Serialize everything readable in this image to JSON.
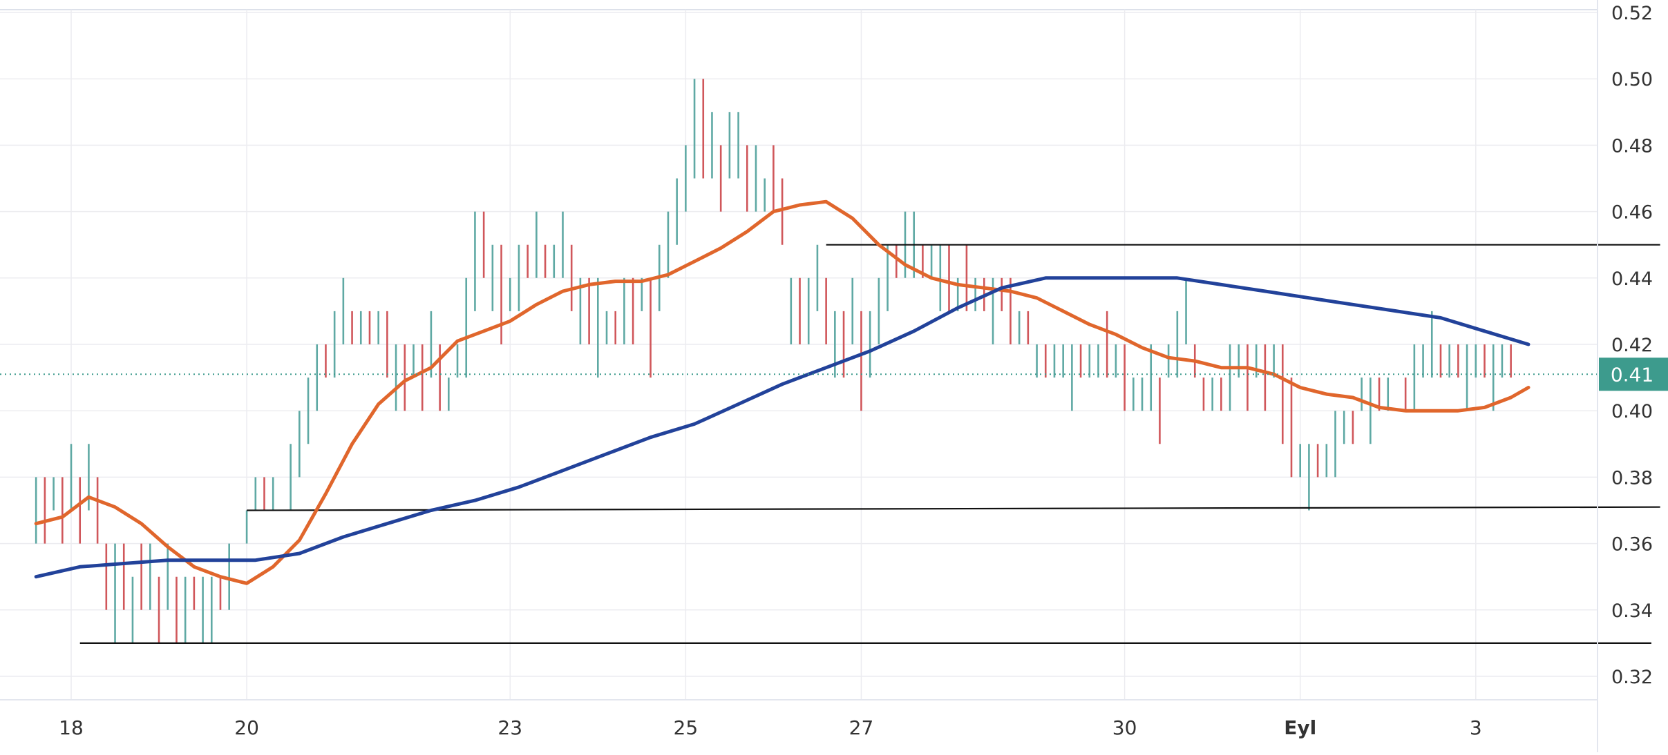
{
  "chart_data": {
    "type": "line",
    "title": "",
    "xlabel": "",
    "ylabel": "",
    "x_ticks": [
      "18",
      "20",
      "23",
      "25",
      "27",
      "30",
      "Eyl",
      "3"
    ],
    "y_ticks": [
      "0.32",
      "0.34",
      "0.36",
      "0.38",
      "0.40",
      "0.42",
      "0.44",
      "0.46",
      "0.48",
      "0.50",
      "0.52"
    ],
    "ylim": [
      0.31,
      0.52
    ],
    "xlim": [
      17.6,
      36.2
    ],
    "grid": true,
    "last_price_label": "0.41",
    "last_price": 0.411,
    "ohlc": [
      [
        17.6,
        0.38,
        0.36,
        1
      ],
      [
        17.7,
        0.38,
        0.36,
        -1
      ],
      [
        17.8,
        0.38,
        0.37,
        1
      ],
      [
        17.9,
        0.38,
        0.36,
        -1
      ],
      [
        18.0,
        0.39,
        0.37,
        1
      ],
      [
        18.1,
        0.38,
        0.36,
        -1
      ],
      [
        18.2,
        0.39,
        0.37,
        1
      ],
      [
        18.3,
        0.38,
        0.36,
        -1
      ],
      [
        18.4,
        0.36,
        0.34,
        -1
      ],
      [
        18.5,
        0.36,
        0.33,
        1
      ],
      [
        18.6,
        0.36,
        0.34,
        -1
      ],
      [
        18.7,
        0.35,
        0.33,
        1
      ],
      [
        18.8,
        0.36,
        0.34,
        -1
      ],
      [
        18.9,
        0.36,
        0.34,
        1
      ],
      [
        19.0,
        0.35,
        0.33,
        -1
      ],
      [
        19.1,
        0.36,
        0.34,
        1
      ],
      [
        19.2,
        0.35,
        0.33,
        -1
      ],
      [
        19.3,
        0.35,
        0.33,
        1
      ],
      [
        19.4,
        0.35,
        0.34,
        -1
      ],
      [
        19.5,
        0.35,
        0.33,
        1
      ],
      [
        19.6,
        0.35,
        0.33,
        1
      ],
      [
        19.7,
        0.35,
        0.34,
        -1
      ],
      [
        19.8,
        0.36,
        0.34,
        1
      ],
      [
        20.0,
        0.37,
        0.36,
        1
      ],
      [
        20.1,
        0.38,
        0.37,
        1
      ],
      [
        20.2,
        0.38,
        0.37,
        -1
      ],
      [
        20.3,
        0.38,
        0.37,
        1
      ],
      [
        20.5,
        0.39,
        0.37,
        1
      ],
      [
        20.6,
        0.4,
        0.38,
        1
      ],
      [
        20.7,
        0.41,
        0.39,
        1
      ],
      [
        20.8,
        0.42,
        0.4,
        1
      ],
      [
        20.9,
        0.42,
        0.41,
        -1
      ],
      [
        21.0,
        0.43,
        0.41,
        1
      ],
      [
        21.1,
        0.44,
        0.42,
        1
      ],
      [
        21.2,
        0.43,
        0.42,
        -1
      ],
      [
        21.3,
        0.43,
        0.42,
        1
      ],
      [
        21.4,
        0.43,
        0.42,
        -1
      ],
      [
        21.5,
        0.43,
        0.42,
        1
      ],
      [
        21.6,
        0.43,
        0.41,
        -1
      ],
      [
        21.7,
        0.42,
        0.4,
        1
      ],
      [
        21.8,
        0.42,
        0.4,
        -1
      ],
      [
        21.9,
        0.42,
        0.41,
        1
      ],
      [
        22.0,
        0.42,
        0.4,
        -1
      ],
      [
        22.1,
        0.43,
        0.41,
        1
      ],
      [
        22.2,
        0.42,
        0.4,
        -1
      ],
      [
        22.3,
        0.41,
        0.4,
        1
      ],
      [
        22.4,
        0.42,
        0.41,
        1
      ],
      [
        22.5,
        0.44,
        0.41,
        1
      ],
      [
        22.6,
        0.46,
        0.43,
        1
      ],
      [
        22.7,
        0.46,
        0.44,
        -1
      ],
      [
        22.8,
        0.45,
        0.43,
        1
      ],
      [
        22.9,
        0.45,
        0.42,
        -1
      ],
      [
        23.0,
        0.44,
        0.43,
        1
      ],
      [
        23.1,
        0.45,
        0.43,
        1
      ],
      [
        23.2,
        0.45,
        0.44,
        -1
      ],
      [
        23.3,
        0.46,
        0.44,
        1
      ],
      [
        23.4,
        0.45,
        0.44,
        -1
      ],
      [
        23.5,
        0.45,
        0.44,
        1
      ],
      [
        23.6,
        0.46,
        0.44,
        1
      ],
      [
        23.7,
        0.45,
        0.43,
        -1
      ],
      [
        23.8,
        0.44,
        0.42,
        1
      ],
      [
        23.9,
        0.44,
        0.42,
        -1
      ],
      [
        24.0,
        0.44,
        0.41,
        1
      ],
      [
        24.1,
        0.43,
        0.42,
        1
      ],
      [
        24.2,
        0.43,
        0.42,
        -1
      ],
      [
        24.3,
        0.44,
        0.42,
        1
      ],
      [
        24.4,
        0.44,
        0.42,
        -1
      ],
      [
        24.5,
        0.44,
        0.43,
        1
      ],
      [
        24.6,
        0.44,
        0.41,
        -1
      ],
      [
        24.7,
        0.45,
        0.43,
        1
      ],
      [
        24.8,
        0.46,
        0.44,
        1
      ],
      [
        24.9,
        0.47,
        0.45,
        1
      ],
      [
        25.0,
        0.48,
        0.46,
        1
      ],
      [
        25.1,
        0.5,
        0.47,
        1
      ],
      [
        25.2,
        0.5,
        0.47,
        -1
      ],
      [
        25.3,
        0.49,
        0.47,
        1
      ],
      [
        25.4,
        0.48,
        0.46,
        -1
      ],
      [
        25.5,
        0.49,
        0.47,
        1
      ],
      [
        25.6,
        0.49,
        0.47,
        1
      ],
      [
        25.7,
        0.48,
        0.46,
        -1
      ],
      [
        25.8,
        0.48,
        0.46,
        1
      ],
      [
        25.9,
        0.47,
        0.46,
        1
      ],
      [
        26.0,
        0.48,
        0.46,
        -1
      ],
      [
        26.1,
        0.47,
        0.45,
        -1
      ],
      [
        26.2,
        0.44,
        0.42,
        1
      ],
      [
        26.3,
        0.44,
        0.42,
        -1
      ],
      [
        26.4,
        0.44,
        0.42,
        1
      ],
      [
        26.5,
        0.45,
        0.43,
        1
      ],
      [
        26.6,
        0.44,
        0.42,
        -1
      ],
      [
        26.7,
        0.43,
        0.41,
        1
      ],
      [
        26.8,
        0.43,
        0.41,
        -1
      ],
      [
        26.9,
        0.44,
        0.42,
        1
      ],
      [
        27.0,
        0.43,
        0.4,
        -1
      ],
      [
        27.1,
        0.43,
        0.41,
        1
      ],
      [
        27.2,
        0.44,
        0.42,
        1
      ],
      [
        27.3,
        0.45,
        0.43,
        1
      ],
      [
        27.4,
        0.45,
        0.44,
        -1
      ],
      [
        27.5,
        0.46,
        0.44,
        1
      ],
      [
        27.6,
        0.46,
        0.44,
        1
      ],
      [
        27.7,
        0.45,
        0.44,
        -1
      ],
      [
        27.8,
        0.45,
        0.44,
        1
      ],
      [
        27.9,
        0.45,
        0.43,
        1
      ],
      [
        28.0,
        0.45,
        0.43,
        -1
      ],
      [
        28.1,
        0.44,
        0.43,
        1
      ],
      [
        28.2,
        0.45,
        0.43,
        -1
      ],
      [
        28.3,
        0.44,
        0.43,
        1
      ],
      [
        28.4,
        0.44,
        0.43,
        -1
      ],
      [
        28.5,
        0.44,
        0.42,
        1
      ],
      [
        28.6,
        0.44,
        0.43,
        -1
      ],
      [
        28.7,
        0.44,
        0.42,
        -1
      ],
      [
        28.8,
        0.43,
        0.42,
        1
      ],
      [
        28.9,
        0.43,
        0.42,
        -1
      ],
      [
        29.0,
        0.42,
        0.41,
        1
      ],
      [
        29.1,
        0.42,
        0.41,
        -1
      ],
      [
        29.2,
        0.42,
        0.41,
        1
      ],
      [
        29.3,
        0.42,
        0.41,
        1
      ],
      [
        29.4,
        0.42,
        0.4,
        1
      ],
      [
        29.5,
        0.42,
        0.41,
        -1
      ],
      [
        29.6,
        0.42,
        0.41,
        1
      ],
      [
        29.7,
        0.42,
        0.41,
        1
      ],
      [
        29.8,
        0.43,
        0.41,
        -1
      ],
      [
        29.9,
        0.42,
        0.41,
        1
      ],
      [
        30.0,
        0.42,
        0.4,
        -1
      ],
      [
        30.1,
        0.41,
        0.4,
        1
      ],
      [
        30.2,
        0.41,
        0.4,
        1
      ],
      [
        30.3,
        0.42,
        0.4,
        1
      ],
      [
        30.4,
        0.41,
        0.39,
        -1
      ],
      [
        30.5,
        0.42,
        0.41,
        1
      ],
      [
        30.6,
        0.43,
        0.41,
        1
      ],
      [
        30.7,
        0.44,
        0.42,
        1
      ],
      [
        30.8,
        0.42,
        0.41,
        -1
      ],
      [
        30.9,
        0.41,
        0.4,
        -1
      ],
      [
        31.0,
        0.41,
        0.4,
        1
      ],
      [
        31.1,
        0.41,
        0.4,
        -1
      ],
      [
        31.2,
        0.42,
        0.4,
        1
      ],
      [
        31.3,
        0.42,
        0.41,
        1
      ],
      [
        31.4,
        0.42,
        0.4,
        -1
      ],
      [
        31.5,
        0.42,
        0.41,
        1
      ],
      [
        31.6,
        0.42,
        0.4,
        -1
      ],
      [
        31.7,
        0.42,
        0.41,
        1
      ],
      [
        31.8,
        0.42,
        0.39,
        -1
      ],
      [
        31.9,
        0.41,
        0.38,
        -1
      ],
      [
        32.0,
        0.39,
        0.38,
        1
      ],
      [
        32.1,
        0.39,
        0.37,
        1
      ],
      [
        32.2,
        0.39,
        0.38,
        -1
      ],
      [
        32.3,
        0.39,
        0.38,
        1
      ],
      [
        32.4,
        0.4,
        0.38,
        1
      ],
      [
        32.5,
        0.4,
        0.39,
        1
      ],
      [
        32.6,
        0.4,
        0.39,
        -1
      ],
      [
        32.7,
        0.41,
        0.4,
        1
      ],
      [
        32.8,
        0.41,
        0.39,
        1
      ],
      [
        32.9,
        0.41,
        0.4,
        -1
      ],
      [
        33.0,
        0.41,
        0.4,
        1
      ],
      [
        33.1,
        0.4,
        0.4,
        1
      ],
      [
        33.2,
        0.41,
        0.4,
        -1
      ],
      [
        33.3,
        0.42,
        0.4,
        1
      ],
      [
        33.4,
        0.42,
        0.41,
        1
      ],
      [
        33.5,
        0.43,
        0.41,
        1
      ],
      [
        33.6,
        0.42,
        0.41,
        -1
      ],
      [
        33.7,
        0.42,
        0.41,
        1
      ],
      [
        33.8,
        0.42,
        0.41,
        -1
      ],
      [
        33.9,
        0.42,
        0.4,
        1
      ],
      [
        34.0,
        0.42,
        0.41,
        1
      ],
      [
        34.1,
        0.42,
        0.41,
        -1
      ],
      [
        34.2,
        0.42,
        0.4,
        1
      ],
      [
        34.3,
        0.42,
        0.41,
        1
      ],
      [
        34.4,
        0.42,
        0.41,
        -1
      ]
    ],
    "series": [
      {
        "type": "line",
        "color": "#e0662c",
        "points": [
          [
            17.6,
            0.366
          ],
          [
            17.9,
            0.368
          ],
          [
            18.2,
            0.374
          ],
          [
            18.5,
            0.371
          ],
          [
            18.8,
            0.366
          ],
          [
            19.1,
            0.359
          ],
          [
            19.4,
            0.353
          ],
          [
            19.7,
            0.35
          ],
          [
            20.0,
            0.348
          ],
          [
            20.3,
            0.353
          ],
          [
            20.6,
            0.361
          ],
          [
            20.9,
            0.375
          ],
          [
            21.2,
            0.39
          ],
          [
            21.5,
            0.402
          ],
          [
            21.8,
            0.409
          ],
          [
            22.1,
            0.413
          ],
          [
            22.4,
            0.421
          ],
          [
            22.7,
            0.424
          ],
          [
            23.0,
            0.427
          ],
          [
            23.3,
            0.432
          ],
          [
            23.6,
            0.436
          ],
          [
            23.9,
            0.438
          ],
          [
            24.2,
            0.439
          ],
          [
            24.5,
            0.439
          ],
          [
            24.8,
            0.441
          ],
          [
            25.1,
            0.445
          ],
          [
            25.4,
            0.449
          ],
          [
            25.7,
            0.454
          ],
          [
            26.0,
            0.46
          ],
          [
            26.3,
            0.462
          ],
          [
            26.6,
            0.463
          ],
          [
            26.9,
            0.458
          ],
          [
            27.2,
            0.45
          ],
          [
            27.5,
            0.444
          ],
          [
            27.8,
            0.44
          ],
          [
            28.1,
            0.438
          ],
          [
            28.4,
            0.437
          ],
          [
            28.7,
            0.436
          ],
          [
            29.0,
            0.434
          ],
          [
            29.3,
            0.43
          ],
          [
            29.6,
            0.426
          ],
          [
            29.9,
            0.423
          ],
          [
            30.2,
            0.419
          ],
          [
            30.5,
            0.416
          ],
          [
            30.8,
            0.415
          ],
          [
            31.1,
            0.413
          ],
          [
            31.4,
            0.413
          ],
          [
            31.7,
            0.411
          ],
          [
            32.0,
            0.407
          ],
          [
            32.3,
            0.405
          ],
          [
            32.6,
            0.404
          ],
          [
            32.9,
            0.401
          ],
          [
            33.2,
            0.4
          ],
          [
            33.5,
            0.4
          ],
          [
            33.8,
            0.4
          ],
          [
            34.1,
            0.401
          ],
          [
            34.4,
            0.404
          ],
          [
            34.6,
            0.407
          ]
        ]
      },
      {
        "type": "line",
        "color": "#22429a",
        "points": [
          [
            17.6,
            0.35
          ],
          [
            18.1,
            0.353
          ],
          [
            18.6,
            0.354
          ],
          [
            19.1,
            0.355
          ],
          [
            19.6,
            0.355
          ],
          [
            20.1,
            0.355
          ],
          [
            20.6,
            0.357
          ],
          [
            21.1,
            0.362
          ],
          [
            21.6,
            0.366
          ],
          [
            22.1,
            0.37
          ],
          [
            22.6,
            0.373
          ],
          [
            23.1,
            0.377
          ],
          [
            23.6,
            0.382
          ],
          [
            24.1,
            0.387
          ],
          [
            24.6,
            0.392
          ],
          [
            25.1,
            0.396
          ],
          [
            25.6,
            0.402
          ],
          [
            26.1,
            0.408
          ],
          [
            26.6,
            0.413
          ],
          [
            27.1,
            0.418
          ],
          [
            27.6,
            0.424
          ],
          [
            28.1,
            0.431
          ],
          [
            28.6,
            0.437
          ],
          [
            29.1,
            0.44
          ],
          [
            29.6,
            0.44
          ],
          [
            30.1,
            0.44
          ],
          [
            30.6,
            0.44
          ],
          [
            31.1,
            0.438
          ],
          [
            31.6,
            0.436
          ],
          [
            32.1,
            0.434
          ],
          [
            32.6,
            0.432
          ],
          [
            33.1,
            0.43
          ],
          [
            33.6,
            0.428
          ],
          [
            34.1,
            0.424
          ],
          [
            34.6,
            0.42
          ]
        ]
      }
    ],
    "horizontal_lines": [
      {
        "y": 0.33,
        "x_from": 18.1,
        "x_to": 36.0,
        "color": "#111111"
      },
      {
        "y": 0.37,
        "x_from": 20.0,
        "x_to": 36.1,
        "color": "#111111",
        "y_end": 0.371
      },
      {
        "y": 0.45,
        "x_from": 26.6,
        "x_to": 36.1,
        "color": "#111111"
      }
    ],
    "colors": {
      "up": "#5fa9a4",
      "down": "#d0575b",
      "grid": "#ececf0",
      "price_label_bg": "#3d9b8d",
      "price_line": "#3d9b8d",
      "axis_text": "#333333"
    }
  }
}
